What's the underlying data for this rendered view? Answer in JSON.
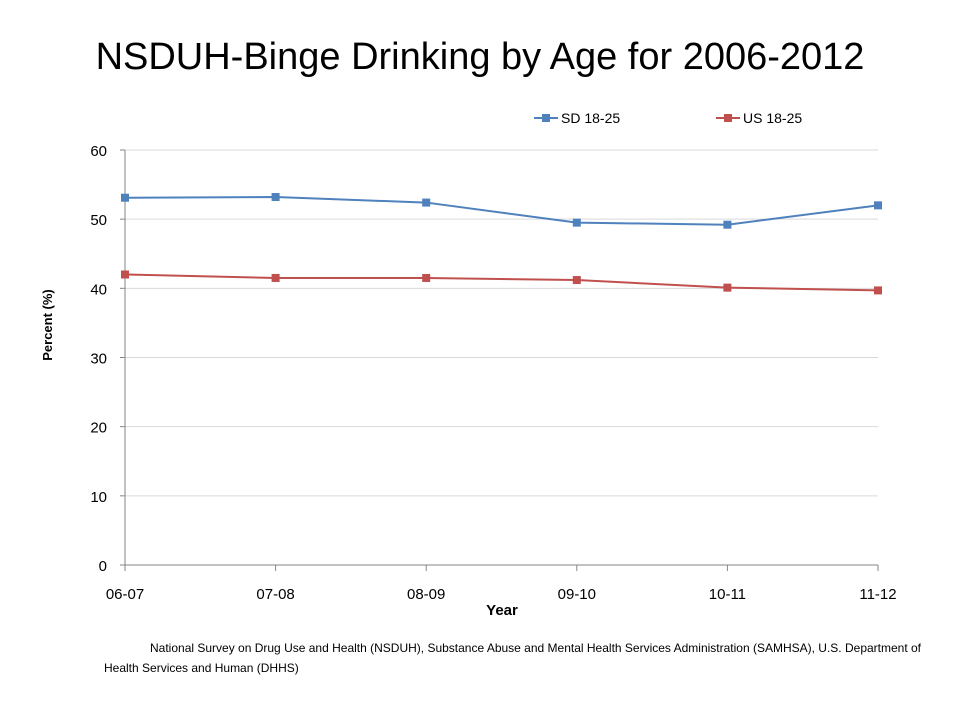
{
  "title": "NSDUH-Binge Drinking by Age for 2006-2012",
  "source_note": "National Survey on Drug Use and Health (NSDUH), Substance Abuse and Mental Health Services Administration (SAMHSA), U.S. Department of Health Services and Human (DHHS)",
  "chart_data": {
    "type": "line",
    "title": "NSDUH-Binge Drinking by Age for 2006-2012",
    "xlabel": "Year",
    "ylabel": "Percent (%)",
    "categories": [
      "06-07",
      "07-08",
      "08-09",
      "09-10",
      "10-11",
      "11-12"
    ],
    "ylim": [
      0,
      60
    ],
    "yticks": [
      0,
      10,
      20,
      30,
      40,
      50,
      60
    ],
    "grid": true,
    "legend_position": "top",
    "series": [
      {
        "name": "SD 18-25",
        "color": "#4F81BD",
        "marker": "square",
        "values": [
          53.1,
          53.2,
          52.4,
          49.5,
          49.2,
          52.0
        ]
      },
      {
        "name": "US 18-25",
        "color": "#C0504D",
        "marker": "square",
        "values": [
          42.0,
          41.5,
          41.5,
          41.2,
          40.1,
          39.7
        ]
      }
    ]
  }
}
